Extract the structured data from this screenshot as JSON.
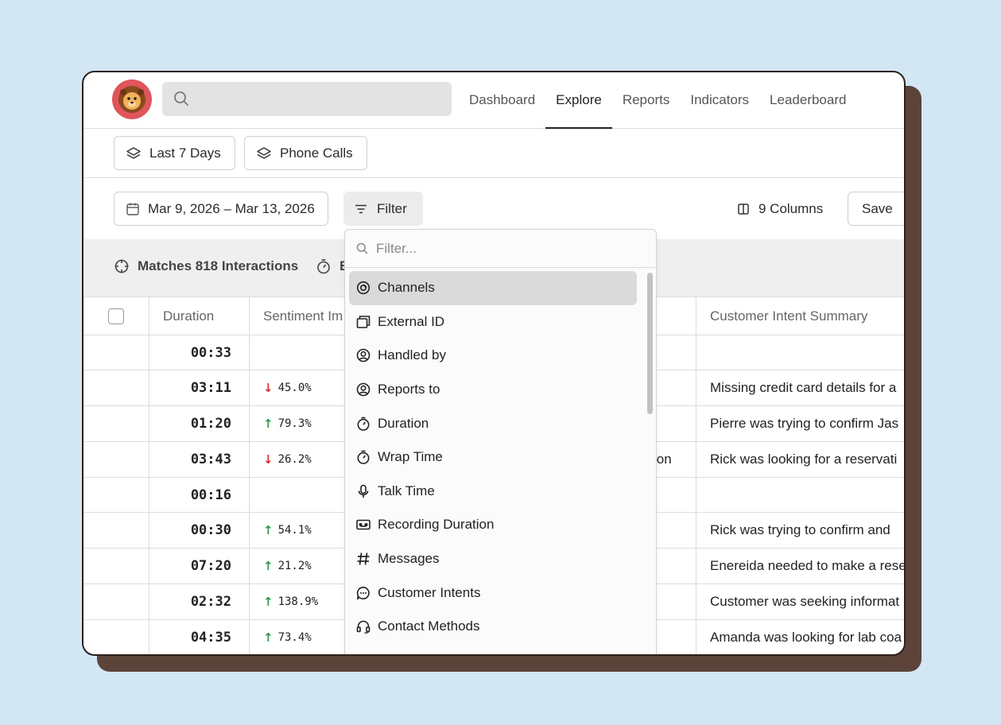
{
  "nav": {
    "items": [
      "Dashboard",
      "Explore",
      "Reports",
      "Indicators",
      "Leaderboard"
    ],
    "active": "Explore"
  },
  "search": {
    "placeholder": ""
  },
  "chips": [
    "Last 7 Days",
    "Phone Calls"
  ],
  "toolbar": {
    "date_range": "Mar 9, 2026 – Mar 13, 2026",
    "filter_label": "Filter",
    "columns_label": "9 Columns",
    "save_label": "Save"
  },
  "summary": {
    "matches": "Matches 818 Interactions",
    "second_fragment": "E"
  },
  "table": {
    "headers": {
      "duration": "Duration",
      "sentiment": "Sentiment Im",
      "intent": "Customer Intent Summary"
    },
    "rows": [
      {
        "duration": "00:33",
        "sentiment": "",
        "dir": "",
        "intent": "",
        "frag": ""
      },
      {
        "duration": "03:11",
        "sentiment": "45.0%",
        "dir": "down",
        "intent": "Missing credit card details for a",
        "frag": ""
      },
      {
        "duration": "01:20",
        "sentiment": "79.3%",
        "dir": "up",
        "intent": "Pierre was trying to confirm Jas",
        "frag": ""
      },
      {
        "duration": "03:43",
        "sentiment": "26.2%",
        "dir": "down",
        "intent": "Rick was looking for a reservati",
        "frag": "ion"
      },
      {
        "duration": "00:16",
        "sentiment": "",
        "dir": "",
        "intent": "",
        "frag": ""
      },
      {
        "duration": "00:30",
        "sentiment": "54.1%",
        "dir": "up",
        "intent": "Rick was trying to confirm and",
        "frag": ""
      },
      {
        "duration": "07:20",
        "sentiment": "21.2%",
        "dir": "up",
        "intent": "Enereida needed to make a rese",
        "frag": ""
      },
      {
        "duration": "02:32",
        "sentiment": "138.9%",
        "dir": "up",
        "intent": "Customer was seeking informat",
        "frag": ""
      },
      {
        "duration": "04:35",
        "sentiment": "73.4%",
        "dir": "up",
        "intent": "Amanda was looking for lab coa",
        "frag": ""
      }
    ]
  },
  "dropdown": {
    "placeholder": "Filter...",
    "items": [
      {
        "label": "Channels",
        "icon": "channels-icon"
      },
      {
        "label": "External ID",
        "icon": "external-id-icon"
      },
      {
        "label": "Handled by",
        "icon": "user-circle-icon"
      },
      {
        "label": "Reports to",
        "icon": "user-circle-icon"
      },
      {
        "label": "Duration",
        "icon": "stopwatch-icon"
      },
      {
        "label": "Wrap Time",
        "icon": "stopwatch-icon"
      },
      {
        "label": "Talk Time",
        "icon": "microphone-icon"
      },
      {
        "label": "Recording Duration",
        "icon": "recording-icon"
      },
      {
        "label": "Messages",
        "icon": "hash-icon"
      },
      {
        "label": "Customer Intents",
        "icon": "chat-bubble-icon"
      },
      {
        "label": "Contact Methods",
        "icon": "headset-icon"
      }
    ],
    "selected": "Channels"
  },
  "colors": {
    "avatar_bg": "#e0555c",
    "sentiment_down": "#d0342c",
    "sentiment_up": "#2e9a4a",
    "frame_shadow": "#5c443a",
    "page_bg": "#d3e6f4"
  }
}
